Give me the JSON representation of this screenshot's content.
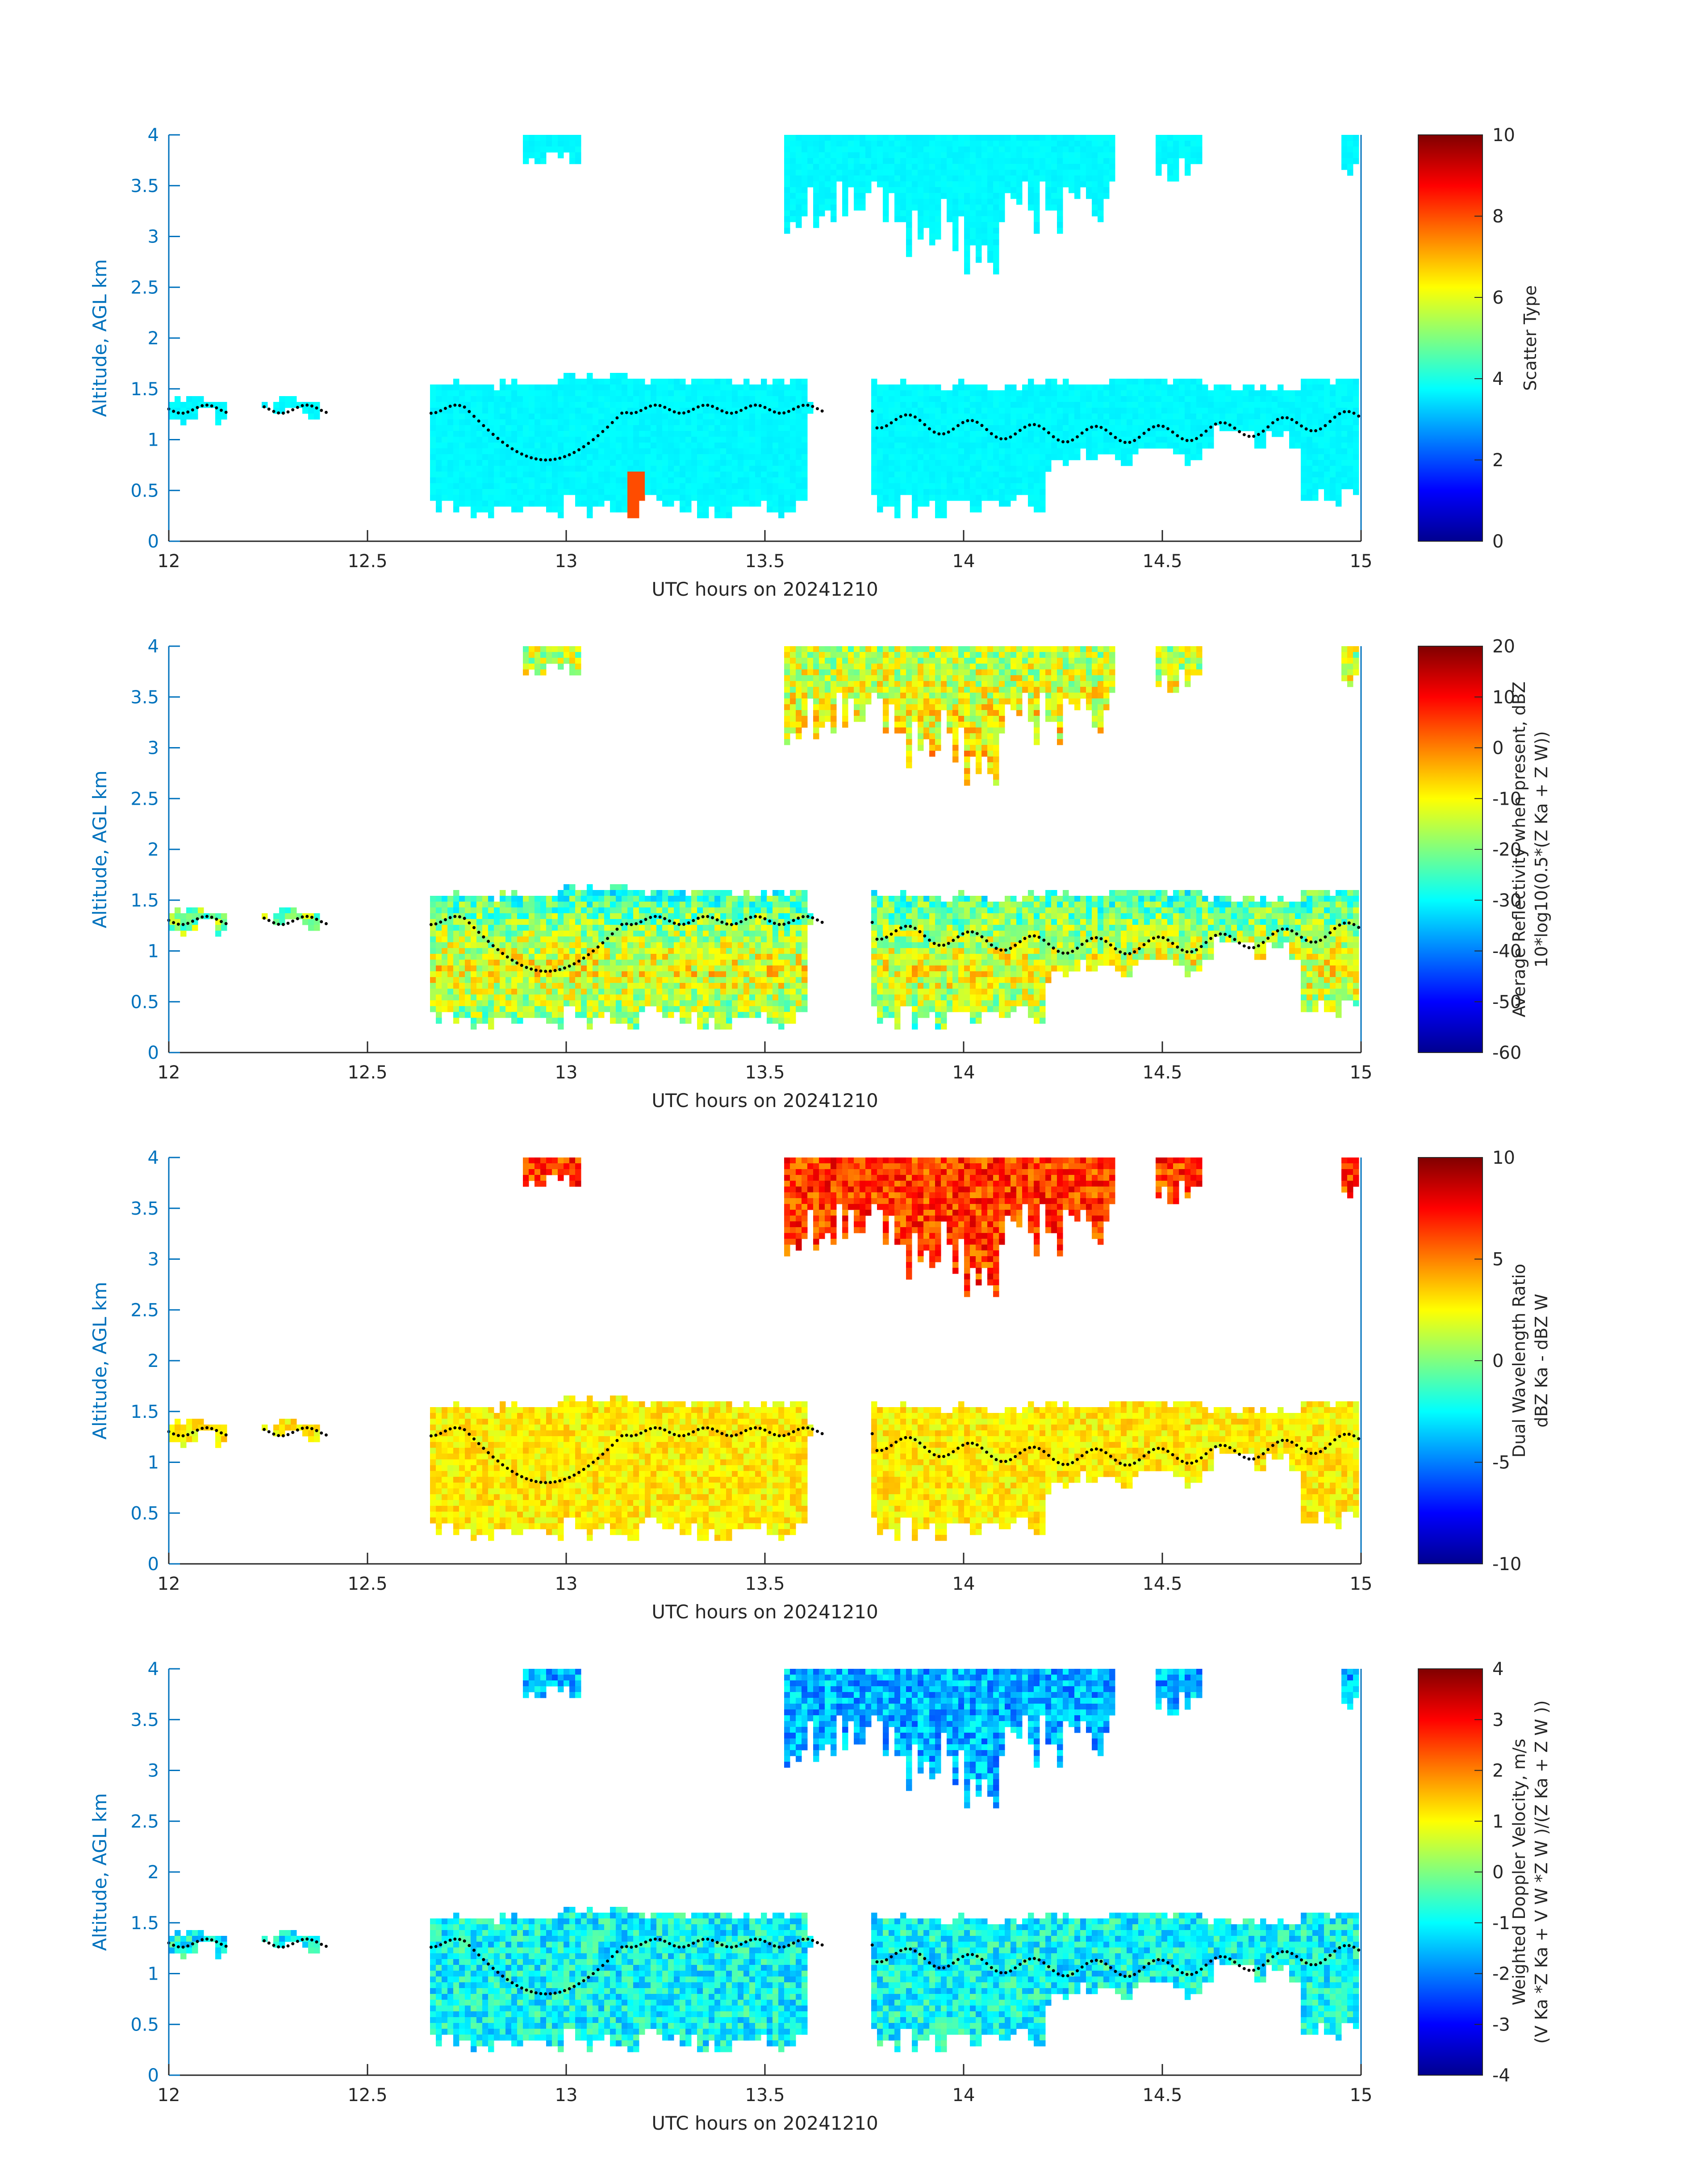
{
  "figure": {
    "xlabel": "UTC hours on 20241210",
    "ylabel": "Altitude, AGL km",
    "x_ticks": [
      "12",
      "12.5",
      "13",
      "13.5",
      "14",
      "14.5",
      "15"
    ],
    "y_ticks": [
      "0",
      "0.5",
      "1",
      "1.5",
      "2",
      "2.5",
      "3",
      "3.5",
      "4"
    ],
    "axis_color": "#0072BD",
    "colormap": "jet"
  },
  "chart_data": [
    {
      "type": "heatmap",
      "xlabel": "UTC hours on 20241210",
      "ylabel": "Altitude, AGL km",
      "xlim": [
        12,
        15
      ],
      "ylim": [
        0,
        4
      ],
      "colorbar": {
        "label_lines": [
          "Scatter Type"
        ],
        "min": 0,
        "max": 10,
        "ticks": [
          "0",
          "2",
          "4",
          "6",
          "8",
          "10"
        ]
      },
      "dominant_value": 3.7,
      "dotted_line": "cloud base altitude trace near 1.0–1.3 km"
    },
    {
      "type": "heatmap",
      "xlabel": "UTC hours on 20241210",
      "ylabel": "Altitude, AGL km",
      "xlim": [
        12,
        15
      ],
      "ylim": [
        0,
        4
      ],
      "colorbar": {
        "label_lines": [
          "Average Reflectivity when present, dBZ",
          "10*log10(0.5*(Z Ka + Z W))"
        ],
        "min": -60,
        "max": 20,
        "ticks": [
          "-60",
          "-50",
          "-40",
          "-30",
          "-20",
          "-10",
          "0",
          "10",
          "20"
        ]
      }
    },
    {
      "type": "heatmap",
      "xlabel": "UTC hours on 20241210",
      "ylabel": "Altitude, AGL km",
      "xlim": [
        12,
        15
      ],
      "ylim": [
        0,
        4
      ],
      "colorbar": {
        "label_lines": [
          "Dual Wavelength Ratio",
          "dBZ Ka - dBZ W"
        ],
        "min": -10,
        "max": 10,
        "ticks": [
          "-10",
          "-5",
          "0",
          "5",
          "10"
        ]
      }
    },
    {
      "type": "heatmap",
      "xlabel": "UTC hours on 20241210",
      "ylabel": "Altitude, AGL km",
      "xlim": [
        12,
        15
      ],
      "ylim": [
        0,
        4
      ],
      "colorbar": {
        "label_lines": [
          "Weighted Doppler Velocity, m/s",
          "(V Ka *Z Ka + V W *Z W )/(Z Ka + Z W ))"
        ],
        "min": -4,
        "max": 4,
        "ticks": [
          "-4",
          "-3",
          "-2",
          "-1",
          "0",
          "1",
          "2",
          "3",
          "4"
        ]
      }
    }
  ],
  "cloud_layers": {
    "upper": [
      {
        "x": [
          12.89,
          13.04
        ],
        "top": 4.0,
        "bottom": 3.7
      },
      {
        "x": [
          13.55,
          13.85
        ],
        "top": 4.0,
        "bottom": 3.0
      },
      {
        "x": [
          13.85,
          14.1
        ],
        "top": 4.0,
        "bottom": 2.6
      },
      {
        "x": [
          14.1,
          14.38
        ],
        "top": 4.0,
        "bottom": 3.0
      },
      {
        "x": [
          14.48,
          14.6
        ],
        "top": 4.0,
        "bottom": 3.5
      },
      {
        "x": [
          14.95,
          15.0
        ],
        "top": 4.0,
        "bottom": 3.6
      }
    ],
    "lower": [
      {
        "x": [
          12.0,
          12.15
        ],
        "top": 1.38,
        "bottom": 1.12
      },
      {
        "x": [
          12.24,
          12.4
        ],
        "top": 1.38,
        "bottom": 1.18
      },
      {
        "x": [
          12.66,
          12.98
        ],
        "top": 1.55,
        "bottom": 0.2
      },
      {
        "x": [
          12.98,
          13.2
        ],
        "top": 1.62,
        "bottom": 0.2
      },
      {
        "x": [
          13.2,
          13.6
        ],
        "top": 1.58,
        "bottom": 0.2
      },
      {
        "x": [
          13.6,
          13.65
        ],
        "top": 1.4,
        "bottom": 1.2
      },
      {
        "x": [
          13.77,
          14.2
        ],
        "top": 1.55,
        "bottom": 0.2
      },
      {
        "x": [
          14.2,
          14.6
        ],
        "top": 1.58,
        "bottom": 0.7
      },
      {
        "x": [
          14.6,
          14.85
        ],
        "top": 1.52,
        "bottom": 0.9
      },
      {
        "x": [
          14.85,
          15.0
        ],
        "top": 1.6,
        "bottom": 0.3
      }
    ]
  }
}
